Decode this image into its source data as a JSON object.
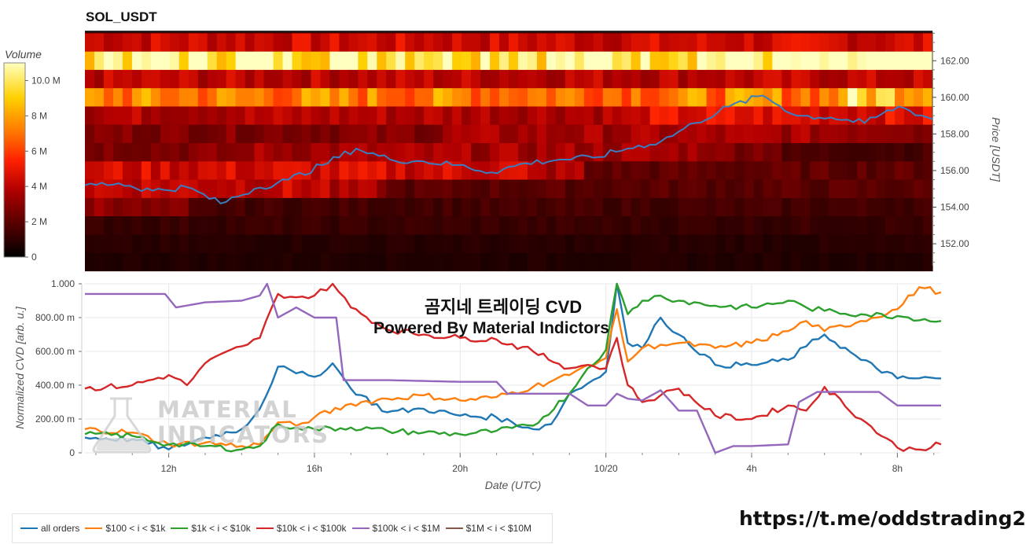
{
  "title": "SOL_USDT",
  "colorbar": {
    "title": "Volume",
    "ticks": [
      "10.0 M",
      "8 M",
      "6 M",
      "4 M",
      "2 M",
      "0"
    ],
    "tick_values": [
      10,
      8,
      6,
      4,
      2,
      0
    ]
  },
  "overlay": {
    "line1": "곰지네 트레이딩 CVD",
    "line2": "Powered By Material Indictors"
  },
  "watermark": {
    "line1": "MATERIAL",
    "line2": "INDICATORS"
  },
  "telegram": "https://t.me/oddstrading2",
  "chart_data": [
    {
      "type": "heatmap",
      "title": "SOL_USDT",
      "ylabel": "Price [USDT]",
      "ylim": [
        150.8,
        163.6
      ],
      "yticks": [
        "162.00",
        "160.00",
        "158.00",
        "156.00",
        "154.00",
        "152.00"
      ],
      "ytick_values": [
        162,
        160,
        158,
        156,
        154,
        152
      ],
      "colorscale": [
        "#000000",
        "#5a0000",
        "#b30000",
        "#ff2200",
        "#ff7a00",
        "#ffd000",
        "#ffffbf"
      ],
      "zlim": [
        0,
        11
      ],
      "price_bands": [
        {
          "price": 163.0,
          "volume": 4.2
        },
        {
          "price": 162.0,
          "volume": 10.6
        },
        {
          "price": 161.0,
          "volume": 3.8
        },
        {
          "price": 160.0,
          "volume": 7.2
        },
        {
          "price": 159.0,
          "volume": 3.6
        },
        {
          "price": 158.0,
          "volume": 2.6
        },
        {
          "price": 157.0,
          "volume": 2.6
        },
        {
          "price": 156.0,
          "volume": 3.4
        },
        {
          "price": 155.0,
          "volume": 3.2
        },
        {
          "price": 154.0,
          "volume": 2.4
        },
        {
          "price": 153.0,
          "volume": 2.0
        },
        {
          "price": 152.0,
          "volume": 1.4
        },
        {
          "price": 151.0,
          "volume": 1.2
        }
      ],
      "price_line": {
        "color": "#3b7dbf",
        "t": [
          0,
          4,
          8,
          12,
          16,
          20,
          24,
          28,
          32,
          36,
          40,
          44,
          48,
          52,
          56,
          60,
          64,
          68,
          72,
          76,
          80,
          84,
          88,
          92,
          96,
          100
        ],
        "price": [
          155.2,
          155.3,
          154.9,
          155.1,
          154.2,
          155.0,
          155.5,
          156.3,
          157.2,
          156.6,
          156.5,
          156.3,
          155.9,
          156.4,
          156.6,
          156.7,
          157.2,
          157.6,
          158.6,
          159.5,
          160.1,
          159.0,
          158.9,
          158.6,
          159.5,
          158.8
        ]
      }
    },
    {
      "type": "line",
      "xlabel": "Date (UTC)",
      "ylabel": "Normalized CVD [arb. u.]",
      "ylim": [
        0,
        1.0
      ],
      "yticks": [
        "0",
        "200.00 m",
        "400.00 m",
        "600.00 m",
        "800.00 m",
        "1.000"
      ],
      "ytick_values": [
        0,
        0.2,
        0.4,
        0.6,
        0.8,
        1.0
      ],
      "xticks": [
        "12h",
        "16h",
        "20h",
        "10/20",
        "4h",
        "8h"
      ],
      "xtick_values": [
        12,
        16,
        20,
        24,
        28,
        32
      ],
      "xlim": [
        9.7,
        33.2
      ],
      "series": [
        {
          "name": "all orders",
          "color": "#1f77b4",
          "x": [
            9.7,
            11.0,
            12.0,
            13.0,
            14.0,
            14.5,
            15.0,
            15.5,
            16.0,
            16.5,
            17.0,
            18.0,
            19.0,
            20.0,
            21.0,
            22.0,
            22.5,
            23.0,
            23.5,
            24.0,
            24.3,
            24.6,
            25.0,
            25.5,
            26.0,
            27.0,
            28.0,
            29.0,
            29.5,
            30.0,
            31.0,
            32.0,
            33.2
          ],
          "y": [
            0.09,
            0.08,
            0.02,
            0.09,
            0.14,
            0.26,
            0.51,
            0.47,
            0.45,
            0.53,
            0.38,
            0.24,
            0.26,
            0.22,
            0.21,
            0.14,
            0.17,
            0.35,
            0.41,
            0.48,
            1.0,
            0.65,
            0.62,
            0.8,
            0.7,
            0.52,
            0.52,
            0.55,
            0.63,
            0.7,
            0.55,
            0.44,
            0.44
          ]
        },
        {
          "name": "$100 < i < $1k",
          "color": "#ff7f0e",
          "x": [
            9.7,
            11.0,
            12.0,
            13.0,
            14.0,
            14.5,
            15.0,
            15.5,
            16.0,
            17.0,
            18.0,
            19.0,
            20.0,
            21.0,
            22.0,
            23.0,
            23.5,
            24.0,
            24.3,
            24.6,
            25.0,
            25.5,
            26.0,
            27.0,
            28.0,
            29.0,
            29.5,
            30.0,
            31.0,
            32.0,
            32.6,
            33.2
          ],
          "y": [
            0.14,
            0.12,
            0.05,
            0.06,
            0.04,
            0.05,
            0.18,
            0.16,
            0.21,
            0.29,
            0.32,
            0.34,
            0.31,
            0.33,
            0.39,
            0.46,
            0.52,
            0.56,
            0.85,
            0.54,
            0.62,
            0.64,
            0.65,
            0.62,
            0.65,
            0.72,
            0.78,
            0.72,
            0.78,
            0.85,
            0.98,
            0.95
          ]
        },
        {
          "name": "$1k < i < $10k",
          "color": "#2ca02c",
          "x": [
            9.7,
            11.0,
            12.0,
            13.0,
            14.0,
            14.5,
            15.0,
            15.5,
            16.0,
            17.0,
            18.0,
            19.0,
            20.0,
            21.0,
            22.0,
            23.0,
            23.5,
            24.0,
            24.3,
            24.6,
            25.0,
            25.5,
            26.0,
            27.0,
            28.0,
            29.0,
            29.5,
            30.0,
            31.0,
            32.0,
            33.2
          ],
          "y": [
            0.11,
            0.1,
            0.05,
            0.04,
            0.02,
            0.04,
            0.17,
            0.15,
            0.14,
            0.15,
            0.13,
            0.12,
            0.11,
            0.13,
            0.16,
            0.35,
            0.5,
            0.61,
            1.0,
            0.82,
            0.9,
            0.93,
            0.9,
            0.87,
            0.86,
            0.9,
            0.86,
            0.84,
            0.82,
            0.81,
            0.78
          ]
        },
        {
          "name": "$10k < i < $100k",
          "color": "#d62728",
          "x": [
            9.7,
            11.0,
            12.0,
            12.5,
            13.0,
            14.0,
            14.5,
            15.0,
            15.5,
            16.0,
            16.5,
            17.0,
            18.0,
            19.0,
            20.0,
            21.0,
            22.0,
            23.0,
            23.5,
            24.0,
            24.3,
            24.6,
            25.0,
            25.5,
            26.0,
            27.0,
            28.0,
            29.0,
            29.5,
            30.0,
            31.0,
            32.0,
            32.5,
            33.2
          ],
          "y": [
            0.38,
            0.4,
            0.46,
            0.4,
            0.53,
            0.63,
            0.68,
            0.94,
            0.92,
            0.93,
            1.0,
            0.86,
            0.73,
            0.7,
            0.68,
            0.67,
            0.6,
            0.5,
            0.52,
            0.5,
            0.68,
            0.4,
            0.3,
            0.34,
            0.38,
            0.22,
            0.2,
            0.28,
            0.25,
            0.39,
            0.2,
            0.03,
            0.02,
            0.05
          ]
        },
        {
          "name": "$100k < i < $1M",
          "color": "#9467bd",
          "x": [
            9.7,
            11.0,
            11.9,
            12.2,
            13.0,
            14.0,
            14.5,
            14.7,
            15.0,
            15.5,
            16.0,
            16.6,
            16.8,
            18.0,
            20.0,
            21.0,
            21.3,
            22.0,
            23.0,
            23.5,
            24.0,
            24.3,
            24.6,
            25.0,
            25.5,
            26.0,
            26.5,
            27.0,
            27.5,
            28.0,
            29.0,
            29.3,
            29.8,
            30.5,
            31.0,
            31.5,
            32.0,
            33.2
          ],
          "y": [
            0.94,
            0.94,
            0.94,
            0.86,
            0.89,
            0.9,
            0.93,
            1.0,
            0.8,
            0.86,
            0.8,
            0.8,
            0.43,
            0.43,
            0.42,
            0.42,
            0.35,
            0.35,
            0.35,
            0.28,
            0.28,
            0.35,
            0.32,
            0.31,
            0.37,
            0.25,
            0.25,
            0.0,
            0.04,
            0.04,
            0.05,
            0.3,
            0.36,
            0.36,
            0.36,
            0.36,
            0.28,
            0.28
          ]
        },
        {
          "name": "$1M < i < $10M",
          "color": "#8c564b",
          "x": [],
          "y": []
        }
      ]
    }
  ],
  "legend": [
    {
      "label": "all orders",
      "color": "#1f77b4"
    },
    {
      "label": "$100 < i < $1k",
      "color": "#ff7f0e"
    },
    {
      "label": "$1k < i < $10k",
      "color": "#2ca02c"
    },
    {
      "label": "$10k < i < $100k",
      "color": "#d62728"
    },
    {
      "label": "$100k < i < $1M",
      "color": "#9467bd"
    },
    {
      "label": "$1M < i < $10M",
      "color": "#8c564b"
    }
  ]
}
